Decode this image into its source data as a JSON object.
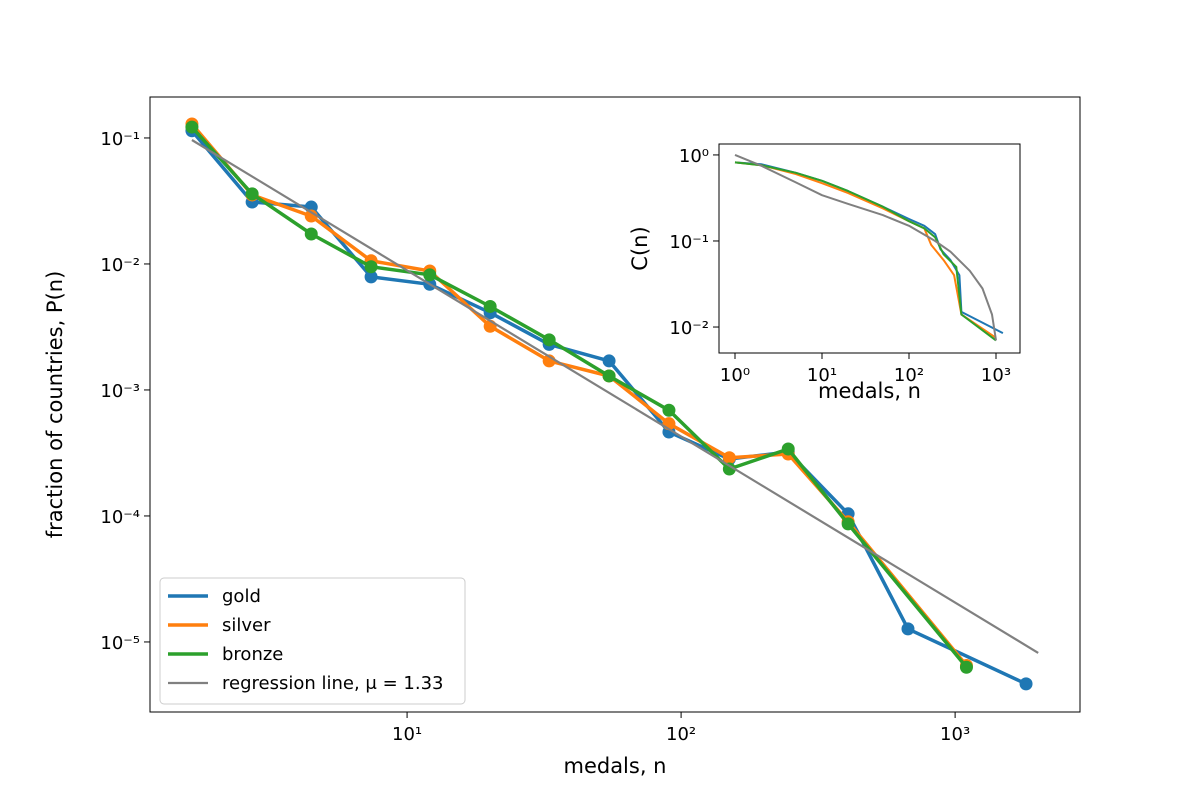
{
  "chart_data": [
    {
      "type": "line",
      "xlabel": "medals, n",
      "ylabel": "fraction of countries, P(n)",
      "xscale": "log",
      "yscale": "log",
      "xlim": [
        1.153,
        2856
      ],
      "ylim": [
        2.78e-06,
        0.2114
      ],
      "xticks": [
        {
          "value": 10,
          "label": "10¹"
        },
        {
          "value": 100,
          "label": "10²"
        },
        {
          "value": 1000,
          "label": "10³"
        }
      ],
      "yticks": [
        {
          "value": 0.1,
          "label": "10⁻¹"
        },
        {
          "value": 0.01,
          "label": "10⁻²"
        },
        {
          "value": 0.001,
          "label": "10⁻³"
        },
        {
          "value": 0.0001,
          "label": "10⁻⁴"
        },
        {
          "value": 1e-05,
          "label": "10⁻⁵"
        }
      ],
      "legend": "lower left",
      "series": [
        {
          "name": "gold",
          "color": "#1f77b4",
          "marker": true,
          "x": [
            1.64,
            2.72,
            4.47,
            7.39,
            12.1,
            20.1,
            33.0,
            54.6,
            90.3,
            150,
            246,
            407,
            673,
            1815
          ],
          "values": [
            0.114,
            0.031,
            0.0283,
            0.0079,
            0.0069,
            0.0041,
            0.0023,
            0.0017,
            0.000464,
            0.000283,
            0.000322,
            0.000104,
            1.27e-05,
            4.65e-06
          ]
        },
        {
          "name": "silver",
          "color": "#ff7f0e",
          "marker": true,
          "x": [
            1.64,
            2.72,
            4.47,
            7.39,
            12.1,
            20.1,
            33.0,
            54.6,
            90.3,
            150,
            246,
            407,
            1100
          ],
          "values": [
            0.129,
            0.0353,
            0.024,
            0.0106,
            0.0088,
            0.0032,
            0.0017,
            0.00129,
            0.00054,
            0.00029,
            0.00031,
            9e-05,
            6.5e-06
          ]
        },
        {
          "name": "bronze",
          "color": "#2ca02c",
          "marker": true,
          "x": [
            1.64,
            2.72,
            4.47,
            7.39,
            12.1,
            20.1,
            33.0,
            54.6,
            90.3,
            150,
            246,
            407,
            1100
          ],
          "values": [
            0.122,
            0.036,
            0.0173,
            0.0095,
            0.0082,
            0.0046,
            0.0025,
            0.00129,
            0.00069,
            0.000236,
            0.00034,
            8.65e-05,
            6.3e-06
          ]
        },
        {
          "name": "regression line, μ = 1.33",
          "color": "#808080",
          "marker": false,
          "x": [
            1.64,
            2010
          ],
          "values": [
            0.0964,
            8.18e-06
          ]
        }
      ]
    },
    {
      "type": "line",
      "xlabel": "medals, n",
      "ylabel": "C(n)",
      "xscale": "log",
      "yscale": "log",
      "xlim": [
        0.655,
        1888
      ],
      "ylim": [
        0.00499,
        1.34
      ],
      "xticks": [
        {
          "value": 1,
          "label": "10⁰"
        },
        {
          "value": 10,
          "label": "10¹"
        },
        {
          "value": 100,
          "label": "10²"
        },
        {
          "value": 1000,
          "label": "10³"
        }
      ],
      "yticks": [
        {
          "value": 1,
          "label": "10⁰"
        },
        {
          "value": 0.1,
          "label": "10⁻¹"
        },
        {
          "value": 0.01,
          "label": "10⁻²"
        }
      ],
      "series": [
        {
          "color": "#1f77b4",
          "x": [
            1,
            2,
            5,
            10,
            20,
            50,
            100,
            150,
            200,
            230,
            300,
            380,
            400,
            1200
          ],
          "values": [
            0.82,
            0.78,
            0.62,
            0.5,
            0.38,
            0.25,
            0.18,
            0.15,
            0.12,
            0.08,
            0.06,
            0.04,
            0.015,
            0.0085
          ]
        },
        {
          "color": "#ff7f0e",
          "x": [
            1,
            2,
            5,
            10,
            20,
            50,
            100,
            150,
            180,
            250,
            330,
            400,
            1000
          ],
          "values": [
            0.82,
            0.76,
            0.6,
            0.47,
            0.36,
            0.24,
            0.17,
            0.14,
            0.09,
            0.06,
            0.04,
            0.014,
            0.0075
          ]
        },
        {
          "color": "#2ca02c",
          "x": [
            1,
            2,
            5,
            10,
            20,
            50,
            100,
            150,
            200,
            250,
            350,
            400,
            1000
          ],
          "values": [
            0.82,
            0.76,
            0.62,
            0.5,
            0.38,
            0.25,
            0.17,
            0.14,
            0.11,
            0.07,
            0.05,
            0.014,
            0.007
          ]
        },
        {
          "color": "#808080",
          "x": [
            1,
            2,
            5,
            10,
            20,
            50,
            100,
            200,
            300,
            500,
            700,
            900,
            1000
          ],
          "values": [
            1,
            0.75,
            0.48,
            0.34,
            0.27,
            0.2,
            0.15,
            0.1,
            0.075,
            0.045,
            0.028,
            0.014,
            0.007
          ]
        }
      ]
    }
  ]
}
